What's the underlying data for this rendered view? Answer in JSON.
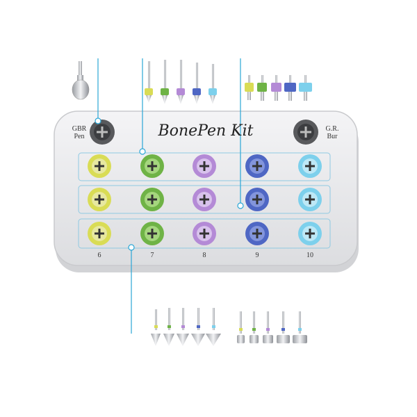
{
  "kit": {
    "title": "BonePen Kit",
    "left_label_1": "GBR",
    "left_label_2": "Pen",
    "right_label_1": "G.R.",
    "right_label_2": "Bur",
    "column_numbers": [
      "6",
      "7",
      "8",
      "9",
      "10"
    ]
  },
  "colors": {
    "yellow": "#d9dc55",
    "green": "#6fb346",
    "purple": "#b48ad6",
    "blue": "#4f67c4",
    "cyan": "#7dd0ec",
    "callout": "#2aa6d6",
    "tray": "#e6e7e9"
  },
  "icons": [
    "bur-icon",
    "drill-icon",
    "stopper-icon",
    "screw-slot-icon"
  ]
}
